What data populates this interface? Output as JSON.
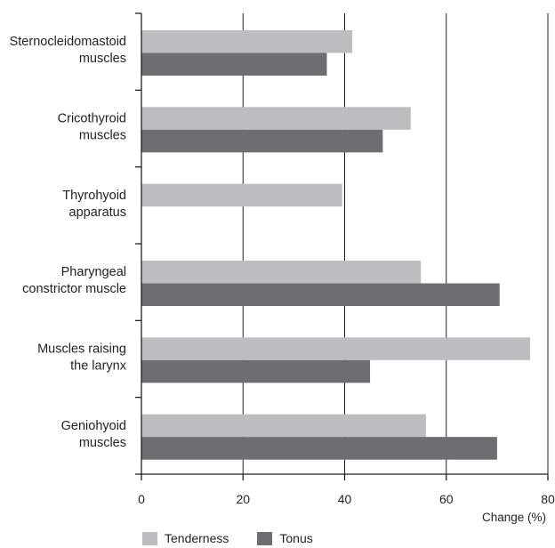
{
  "chart_data": {
    "type": "bar",
    "orientation": "horizontal",
    "categories": [
      [
        "Sternocleidomastoid",
        "muscles"
      ],
      [
        "Cricothyroid",
        "muscles"
      ],
      [
        "Thyrohyoid",
        "apparatus"
      ],
      [
        "Pharyngeal",
        "constrictor muscle"
      ],
      [
        "Muscles raising",
        "the larynx"
      ],
      [
        "Geniohyoid",
        "muscles"
      ]
    ],
    "series": [
      {
        "name": "Tenderness",
        "color": "#bcbdc0",
        "values": [
          41.5,
          53,
          39.5,
          55,
          76.5,
          56
        ]
      },
      {
        "name": "Tonus",
        "color": "#6d6e71",
        "values": [
          36.5,
          47.5,
          null,
          70.5,
          45,
          70
        ]
      }
    ],
    "xlabel": "Change (%)",
    "xlim": [
      0,
      80
    ],
    "xticks": [
      "0",
      "20",
      "40",
      "60",
      "80"
    ],
    "grid": "vertical",
    "legend_position": "bottom-left"
  }
}
